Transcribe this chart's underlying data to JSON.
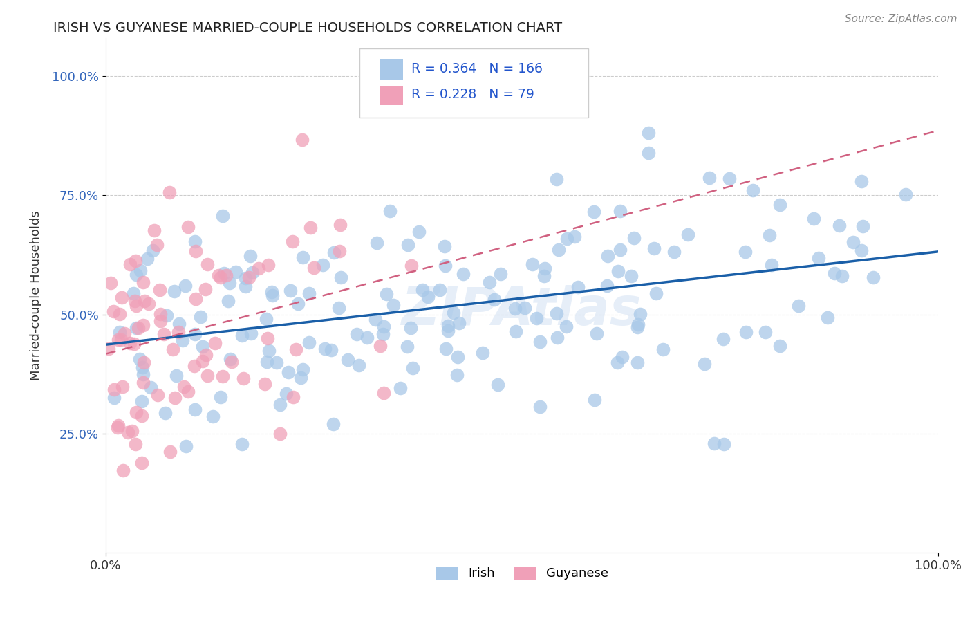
{
  "title": "IRISH VS GUYANESE MARRIED-COUPLE HOUSEHOLDS CORRELATION CHART",
  "source": "Source: ZipAtlas.com",
  "ylabel": "Married-couple Households",
  "legend_irish": {
    "R": 0.364,
    "N": 166
  },
  "legend_guyanese": {
    "R": 0.228,
    "N": 79
  },
  "irish_line_color": "#1a5fa8",
  "guyanese_line_color": "#d06080",
  "irish_dot_color": "#a8c8e8",
  "guyanese_dot_color": "#f0a0b8",
  "watermark": "ZIPAtlas",
  "title_color": "#222222",
  "source_color": "#888888",
  "ylabel_color": "#333333",
  "ytick_color": "#3366bb",
  "xtick_color": "#333333",
  "grid_color": "#cccccc",
  "legend_edge_color": "#cccccc",
  "legend_text_color": "#2255cc"
}
